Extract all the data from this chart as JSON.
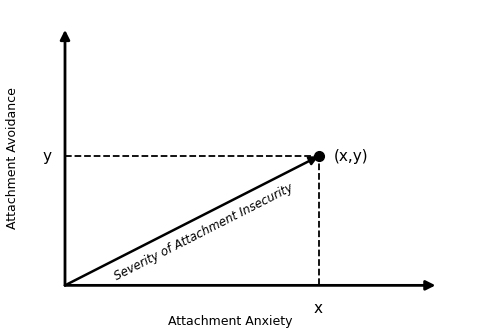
{
  "xlim": [
    0,
    10
  ],
  "ylim": [
    0,
    10
  ],
  "point_x": 6.5,
  "point_y": 4.8,
  "origin_x": 0.0,
  "origin_y": 0.0,
  "xaxis_end": 9.5,
  "yaxis_end": 9.5,
  "axis_color": "#000000",
  "dashed_color": "#000000",
  "arrow_color": "#000000",
  "point_color": "#000000",
  "label_anxiety": "Attachment Anxiety",
  "label_avoidance": "Attachment Avoidance",
  "label_severity": "Severity of Attachment Insecurity",
  "label_x": "x",
  "label_y": "y",
  "label_point": "(x,y)",
  "background_color": "#ffffff",
  "fontsize_axis_label": 9,
  "fontsize_tick_label": 11,
  "fontsize_point_label": 11,
  "fontsize_severity": 8.5
}
